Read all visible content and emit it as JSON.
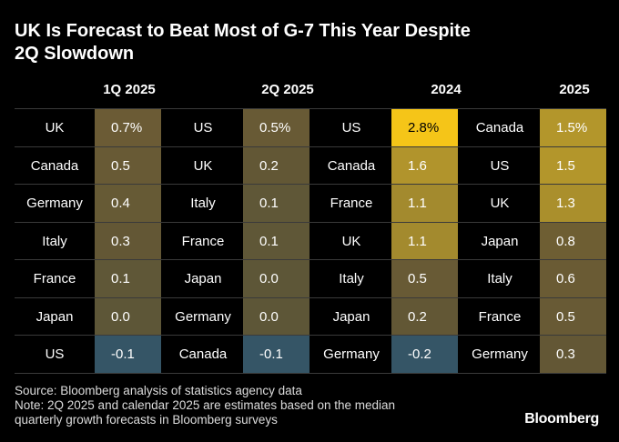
{
  "title_lines": [
    "UK Is Forecast to Beat Most of G-7 This Year Despite",
    "2Q Slowdown"
  ],
  "chart_data": {
    "type": "table",
    "columns": [
      {
        "header": "1Q 2025",
        "rows": [
          {
            "country": "UK",
            "value": "0.7%",
            "fill": "#6b5b35",
            "dark": false
          },
          {
            "country": "Canada",
            "value": "0.5",
            "fill": "#685a35",
            "dark": false
          },
          {
            "country": "Germany",
            "value": "0.4",
            "fill": "#665a35",
            "dark": false
          },
          {
            "country": "Italy",
            "value": "0.3",
            "fill": "#635735",
            "dark": false
          },
          {
            "country": "France",
            "value": "0.1",
            "fill": "#5f5737",
            "dark": false
          },
          {
            "country": "Japan",
            "value": "0.0",
            "fill": "#5d5637",
            "dark": false
          },
          {
            "country": "US",
            "value": "-0.1",
            "fill": "#355566",
            "dark": false
          }
        ]
      },
      {
        "header": "2Q 2025",
        "rows": [
          {
            "country": "US",
            "value": "0.5%",
            "fill": "#685a35",
            "dark": false
          },
          {
            "country": "UK",
            "value": "0.2",
            "fill": "#625735",
            "dark": false
          },
          {
            "country": "Italy",
            "value": "0.1",
            "fill": "#5f5737",
            "dark": false
          },
          {
            "country": "France",
            "value": "0.1",
            "fill": "#5f5737",
            "dark": false
          },
          {
            "country": "Japan",
            "value": "0.0",
            "fill": "#5d5637",
            "dark": false
          },
          {
            "country": "Germany",
            "value": "0.0",
            "fill": "#5d5637",
            "dark": false
          },
          {
            "country": "Canada",
            "value": "-0.1",
            "fill": "#355566",
            "dark": false
          }
        ]
      },
      {
        "header": "2024",
        "rows": [
          {
            "country": "US",
            "value": "2.8%",
            "fill": "#f5c518",
            "dark": true
          },
          {
            "country": "Canada",
            "value": "1.6",
            "fill": "#b1942c",
            "dark": false
          },
          {
            "country": "France",
            "value": "1.1",
            "fill": "#a38a2e",
            "dark": false
          },
          {
            "country": "UK",
            "value": "1.1",
            "fill": "#a38a2e",
            "dark": false
          },
          {
            "country": "Italy",
            "value": "0.5",
            "fill": "#685a35",
            "dark": false
          },
          {
            "country": "Japan",
            "value": "0.2",
            "fill": "#625735",
            "dark": false
          },
          {
            "country": "Germany",
            "value": "-0.2",
            "fill": "#355566",
            "dark": false
          }
        ]
      },
      {
        "header": "2025",
        "rows": [
          {
            "country": "Canada",
            "value": "1.5%",
            "fill": "#b3962b",
            "dark": false
          },
          {
            "country": "US",
            "value": "1.5",
            "fill": "#b3962b",
            "dark": false
          },
          {
            "country": "UK",
            "value": "1.3",
            "fill": "#aa8f2c",
            "dark": false
          },
          {
            "country": "Japan",
            "value": "0.8",
            "fill": "#6e5e33",
            "dark": false
          },
          {
            "country": "Italy",
            "value": "0.6",
            "fill": "#6a5b34",
            "dark": false
          },
          {
            "country": "France",
            "value": "0.5",
            "fill": "#685a35",
            "dark": false
          },
          {
            "country": "Germany",
            "value": "0.3",
            "fill": "#635735",
            "dark": false
          }
        ]
      }
    ]
  },
  "footer": {
    "source": "Source: Bloomberg analysis of statistics agency data",
    "note_line1": "Note: 2Q 2025 and calendar 2025 are estimates based on the median",
    "note_line2": "quarterly growth forecasts in Bloomberg surveys"
  },
  "logo": "Bloomberg"
}
